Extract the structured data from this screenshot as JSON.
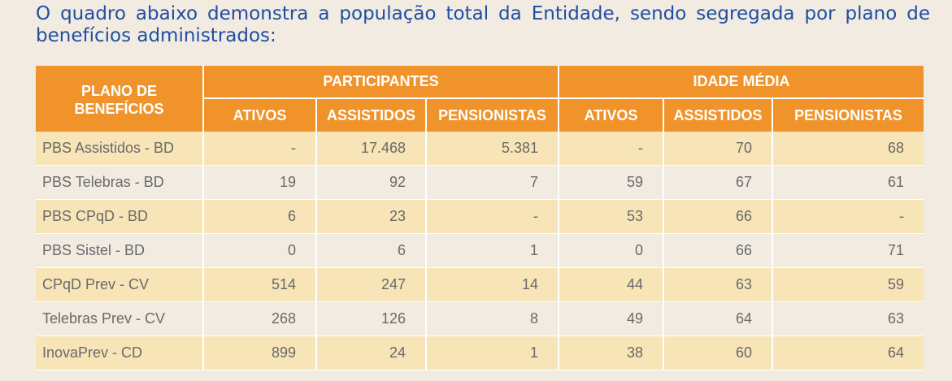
{
  "intro_text": "O quadro abaixo demonstra a população total da Entidade, sendo segregada por plano de benefícios administrados:",
  "colors": {
    "header_bg": "#f0932a",
    "intro_text": "#1f4ea3",
    "band_row": "#f7e4b7"
  },
  "table": {
    "header_plan": "PLANO DE BENEFÍCIOS",
    "group_participants": "PARTICIPANTES",
    "group_age": "IDADE MÉDIA",
    "sub_headers": [
      "ATIVOS",
      "ASSISTIDOS",
      "PENSIONISTAS",
      "ATIVOS",
      "ASSISTIDOS",
      "PENSIONISTAS"
    ],
    "rows": [
      {
        "plan": "PBS Assistidos - BD",
        "values": [
          "-",
          "17.468",
          "5.381",
          "-",
          "70",
          "68"
        ]
      },
      {
        "plan": "PBS Telebras - BD",
        "values": [
          "19",
          "92",
          "7",
          "59",
          "67",
          "61"
        ]
      },
      {
        "plan": "PBS CPqD - BD",
        "values": [
          "6",
          "23",
          "-",
          "53",
          "66",
          "-"
        ]
      },
      {
        "plan": "PBS Sistel - BD",
        "values": [
          "0",
          "6",
          "1",
          "0",
          "66",
          "71"
        ]
      },
      {
        "plan": "CPqD Prev - CV",
        "values": [
          "514",
          "247",
          "14",
          "44",
          "63",
          "59"
        ]
      },
      {
        "plan": "Telebras Prev - CV",
        "values": [
          "268",
          "126",
          "8",
          "49",
          "64",
          "63"
        ]
      },
      {
        "plan": "InovaPrev - CD",
        "values": [
          "899",
          "24",
          "1",
          "38",
          "60",
          "64"
        ]
      }
    ]
  }
}
